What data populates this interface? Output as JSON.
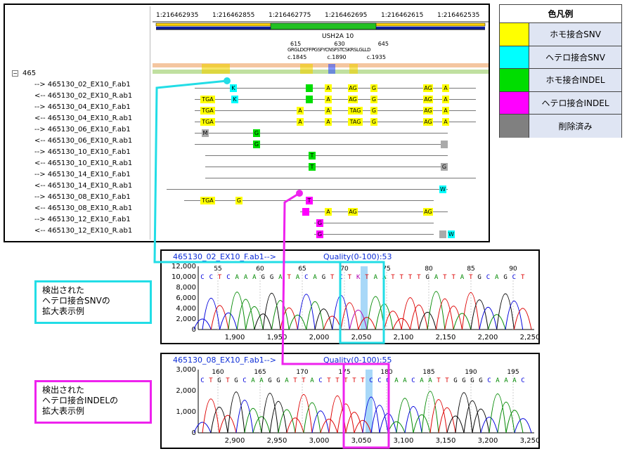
{
  "legend": {
    "title": "色凡例",
    "items": [
      {
        "label": "ホモ接合SNV",
        "color": "#ffff00"
      },
      {
        "label": "ヘテロ接合SNV",
        "color": "#00ffff"
      },
      {
        "label": "ホモ接合INDEL",
        "color": "#00dd00"
      },
      {
        "label": "ヘテロ接合INDEL",
        "color": "#ff00ff"
      },
      {
        "label": "削除済み",
        "color": "#808080"
      }
    ]
  },
  "tree": {
    "root_label": "465",
    "expander": "⊟",
    "items": [
      "--> 465130_02_EX10_F.ab1",
      "<-- 465130_02_EX10_R.ab1",
      "--> 465130_04_EX10_F.ab1",
      "<-- 465130_04_EX10_R.ab1",
      "--> 465130_06_EX10_F.ab1",
      "<-- 465130_06_EX10_R.ab1",
      "--> 465130_10_EX10_F.ab1",
      "<-- 465130_10_EX10_R.ab1",
      "--> 465130_14_EX10_F.ab1",
      "<-- 465130_14_EX10_R.ab1",
      "--> 465130_08_EX10_F.ab1",
      "<-- 465130_08_EX10_R.ab1",
      "--> 465130_12_EX10_F.ab1",
      "<-- 465130_12_EX10_R.ab1"
    ]
  },
  "track": {
    "ruler": [
      "1:216462935",
      "1:216462855",
      "1:216462775",
      "1:216462695",
      "1:216462615",
      "1:216462535"
    ],
    "gene": "USH2A",
    "exon": "10",
    "aa_positions": [
      "615",
      "630",
      "645"
    ],
    "cdna_positions": [
      "c.1845",
      "c.1890",
      "c.1935"
    ],
    "aa_sequence": "GRGLDCFFPGSFYCNSFSTCSKRSLGLLD"
  },
  "trace1": {
    "title": "465130_02_EX10_F.ab1-->",
    "quality": "Quality(0-100):53",
    "y_ticks": [
      "12,000",
      "10,000",
      "8,000",
      "6,000",
      "4,000",
      "2,000",
      "0"
    ],
    "x_ticks": [
      "1,900",
      "1,950",
      "2,000",
      "2,050",
      "2,100",
      "2,150",
      "2,200",
      "2,250"
    ],
    "base_nums": [
      "55",
      "60",
      "65",
      "70",
      "75",
      "80",
      "85",
      "90"
    ],
    "bases": "CCTCAAAGGATACAGTCTKTAATTTTGATTATGCAGCT"
  },
  "trace2": {
    "title": "465130_08_EX10_F.ab1-->",
    "quality": "Quality(0-100):55",
    "y_ticks": [
      "3,000",
      "2,000",
      "1,000",
      "0"
    ],
    "x_ticks": [
      "2,900",
      "2,950",
      "3,000",
      "3,050",
      "3,100",
      "3,150",
      "3,200",
      "3,250"
    ],
    "base_nums": [
      "160",
      "165",
      "170",
      "175",
      "180",
      "185",
      "190",
      "195"
    ],
    "bases": "CTGTGCAAGGATTACTTTTTCCCAACAATTGGGGCAAAC"
  },
  "callout1": {
    "lines": [
      "検出された",
      "ヘテロ接合SNVの",
      "拡大表示例"
    ]
  },
  "callout2": {
    "lines": [
      "検出された",
      "ヘテロ接合INDELの",
      "拡大表示例"
    ]
  }
}
